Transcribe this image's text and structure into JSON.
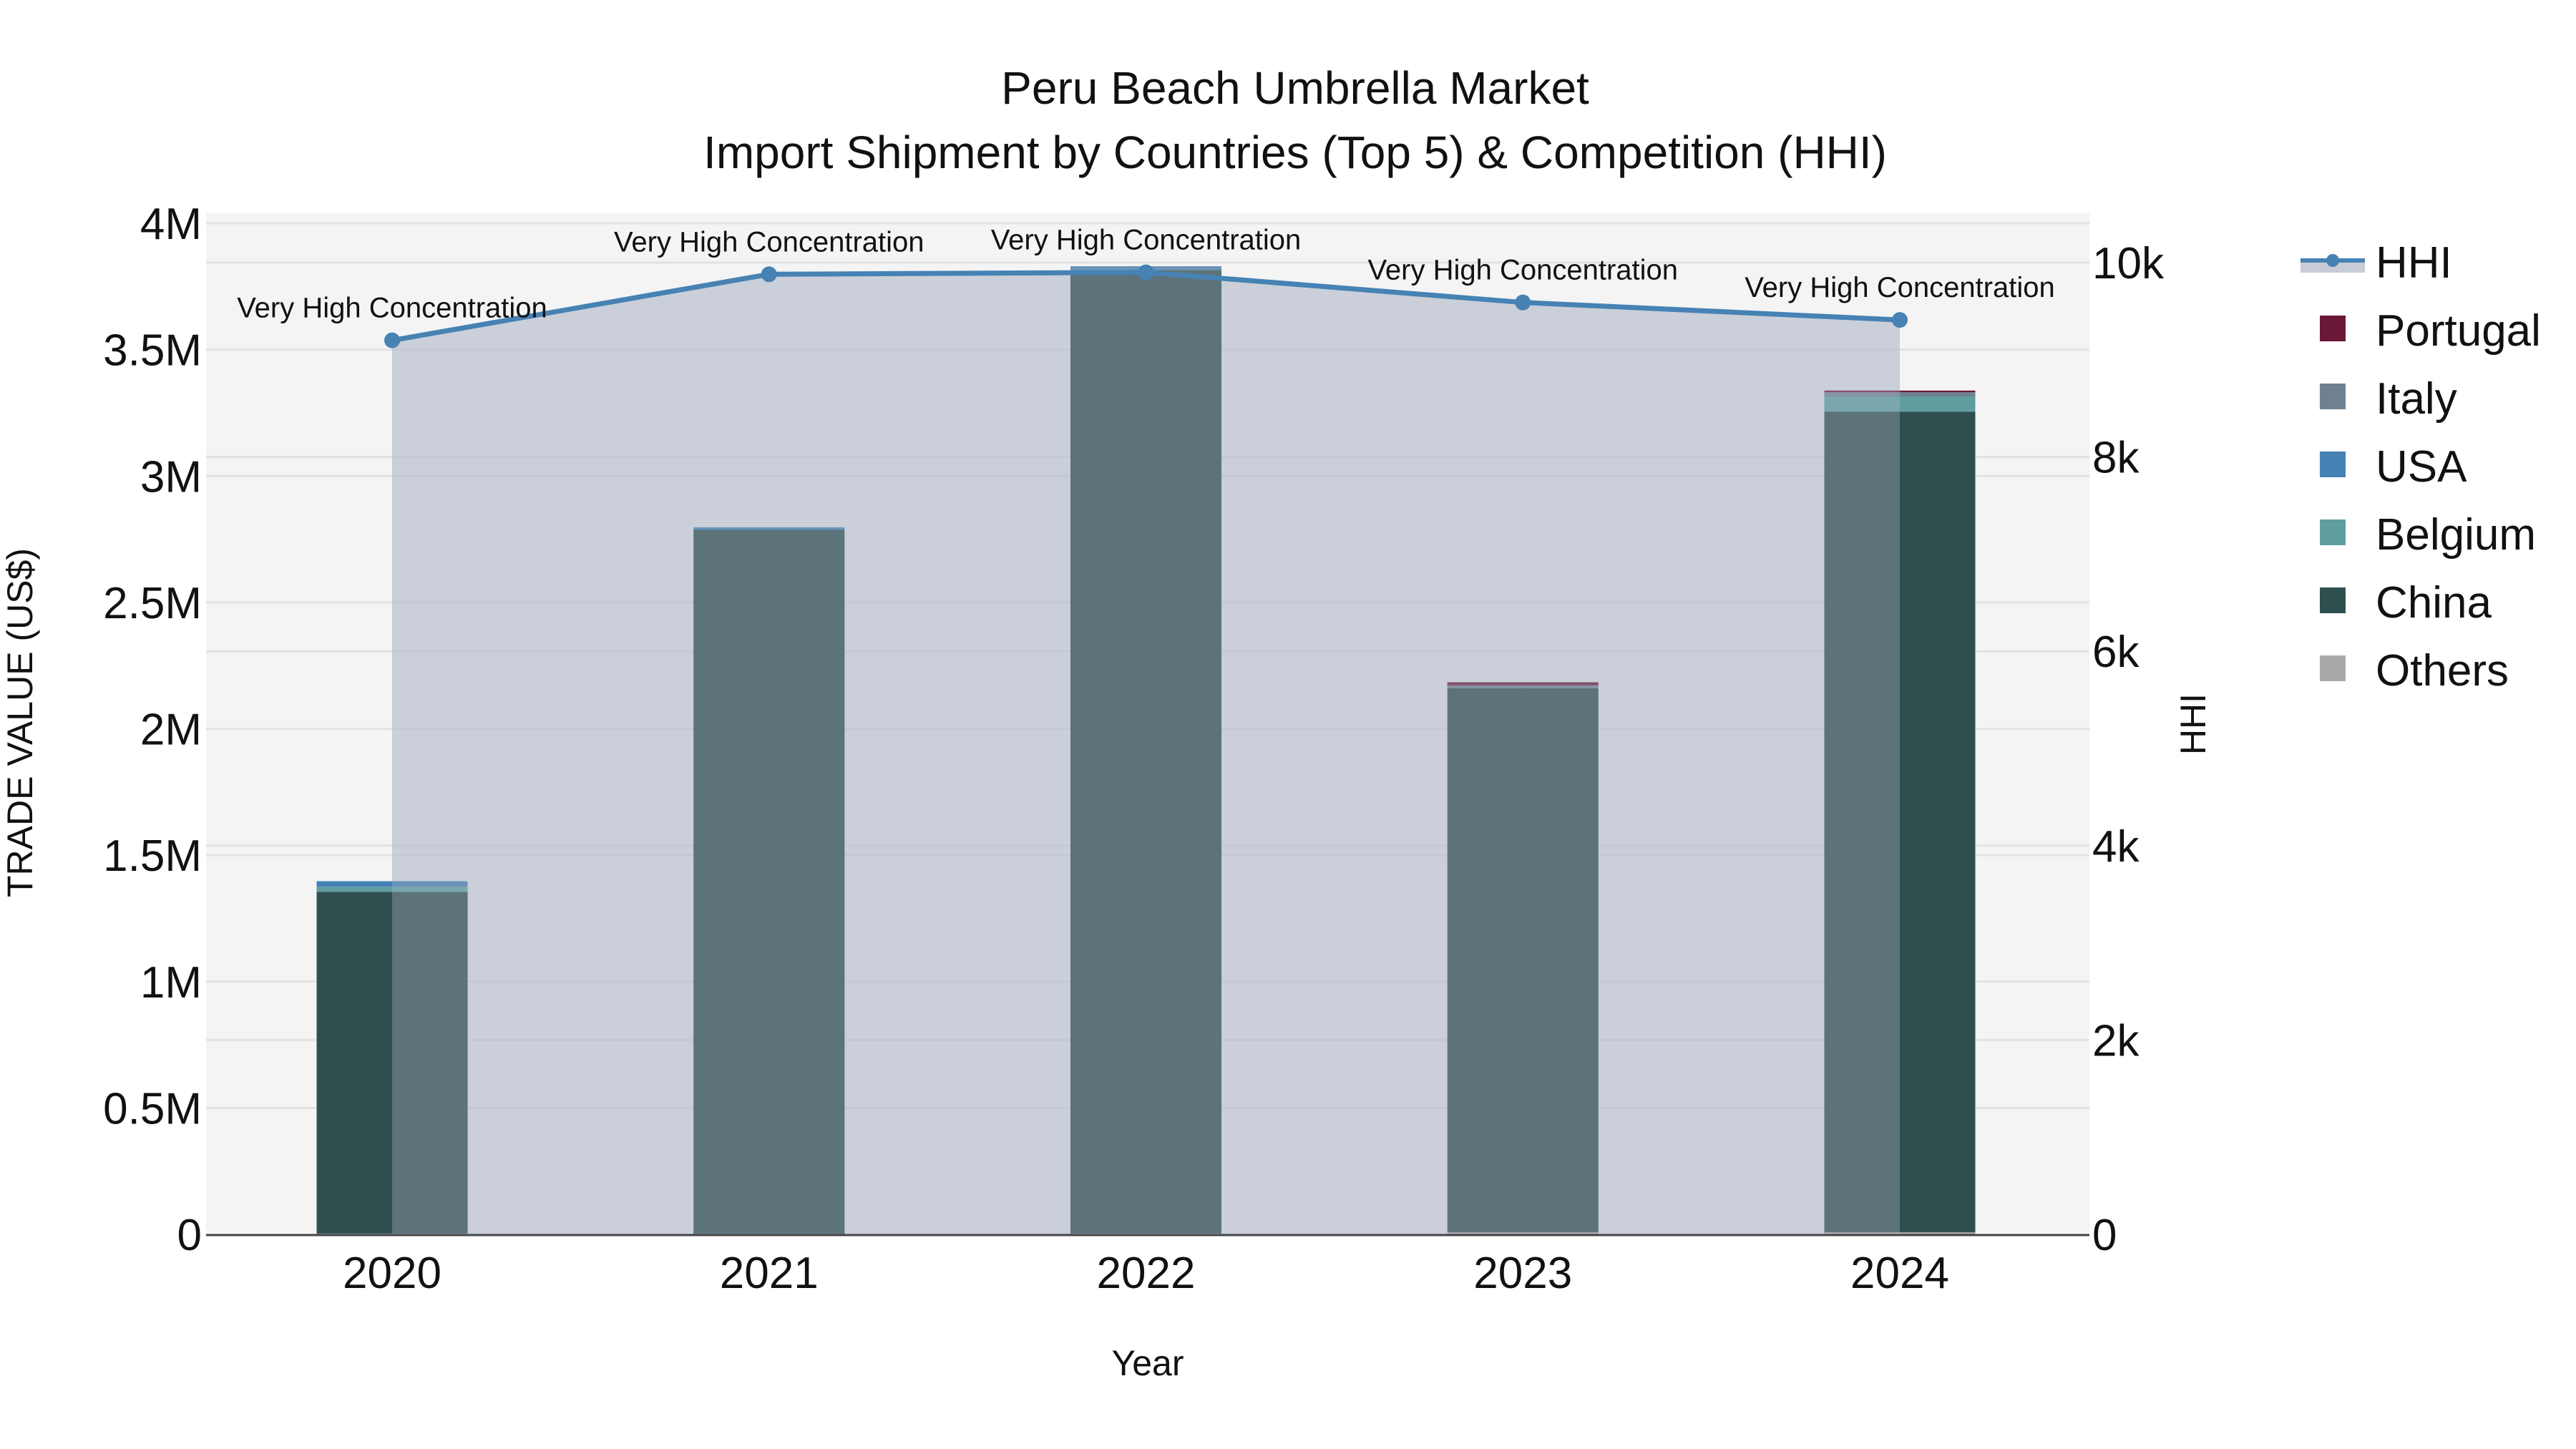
{
  "chart_data": {
    "type": "bar",
    "title": "Peru Beach Umbrella Market",
    "subtitle": "Import Shipment by Countries (Top 5) & Competition (HHI)",
    "xlabel": "Year",
    "ylabel": "TRADE VALUE (US$)",
    "y2label": "HHI",
    "categories": [
      "2020",
      "2021",
      "2022",
      "2023",
      "2024"
    ],
    "ylim": [
      0,
      4100000
    ],
    "y2lim": [
      0,
      10400
    ],
    "yticks": [
      {
        "v": 0,
        "label": "0"
      },
      {
        "v": 500000,
        "label": "0.5M"
      },
      {
        "v": 1000000,
        "label": "1M"
      },
      {
        "v": 1500000,
        "label": "1.5M"
      },
      {
        "v": 2000000,
        "label": "2M"
      },
      {
        "v": 2500000,
        "label": "2.5M"
      },
      {
        "v": 3000000,
        "label": "3M"
      },
      {
        "v": 3500000,
        "label": "3.5M"
      },
      {
        "v": 4000000,
        "label": "4M"
      }
    ],
    "y2ticks": [
      {
        "v": 0,
        "label": "0"
      },
      {
        "v": 2000,
        "label": "2k"
      },
      {
        "v": 4000,
        "label": "4k"
      },
      {
        "v": 6000,
        "label": "6k"
      },
      {
        "v": 8000,
        "label": "8k"
      },
      {
        "v": 10000,
        "label": "10k"
      }
    ],
    "grid": true,
    "legend_position": "right",
    "series": [
      {
        "name": "Others",
        "color": "#A9A9A9",
        "values": [
          3000,
          2000,
          3000,
          8000,
          8000
        ]
      },
      {
        "name": "China",
        "color": "#2F4F4F",
        "values": [
          1352000,
          2785000,
          3812000,
          2152000,
          3247000
        ]
      },
      {
        "name": "Belgium",
        "color": "#5F9EA0",
        "values": [
          20000,
          0,
          0,
          0,
          60000
        ]
      },
      {
        "name": "USA",
        "color": "#4682B4",
        "values": [
          22000,
          10000,
          15000,
          0,
          0
        ]
      },
      {
        "name": "Italy",
        "color": "#708090",
        "values": [
          0,
          0,
          0,
          12000,
          17000
        ]
      },
      {
        "name": "Portugal",
        "color": "#6B1737",
        "values": [
          0,
          0,
          0,
          12000,
          6000
        ]
      }
    ],
    "hhi": {
      "name": "HHI",
      "color": "#4682B4",
      "fill": "rgba(176,184,200,0.62)",
      "values": [
        9200,
        9880,
        9900,
        9590,
        9410
      ],
      "annotations": [
        "Very High Concentration",
        "Very High Concentration",
        "Very High Concentration",
        "Very High Concentration",
        "Very High Concentration"
      ]
    },
    "legend": [
      "HHI",
      "Portugal",
      "Italy",
      "USA",
      "Belgium",
      "China",
      "Others"
    ]
  }
}
